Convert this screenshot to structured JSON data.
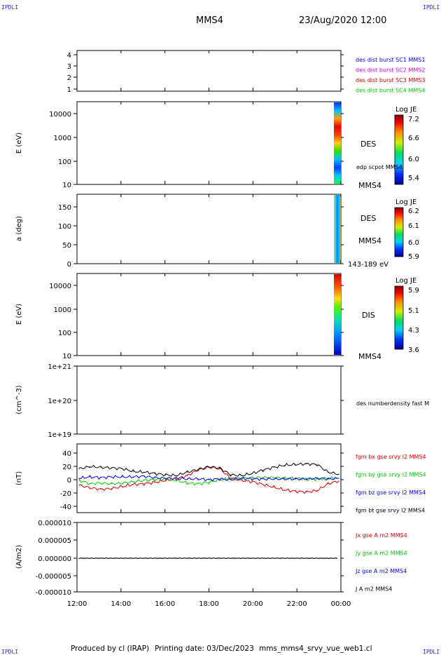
{
  "header": {
    "corner_tl": "IPDLI",
    "corner_tr": "IPDLI",
    "corner_bl": "IPDLI",
    "corner_br": "IPDLI",
    "spacecraft": "MMS4",
    "datetime": "23/Aug/2020 12:00"
  },
  "footer": {
    "produced_by": "Produced by cl (IRAP)",
    "printing_date": "Printing date: 03/Dec/2023",
    "filename": "mms_mms4_srvy_vue_web1.cl"
  },
  "x_axis": {
    "ticks": [
      "12:00",
      "14:00",
      "16:00",
      "18:00",
      "20:00",
      "22:00",
      "00:00"
    ]
  },
  "colors": {
    "blue": "#0000ee",
    "magenta": "#dd00dd",
    "red": "#dd0000",
    "green": "#00cc00",
    "black": "#000000"
  },
  "panels": {
    "p1": {
      "y_ticks": [
        "4",
        "3",
        "2",
        "1"
      ],
      "legend": [
        {
          "text": "des dist burst SC1 MMS1",
          "color": "#0000ee"
        },
        {
          "text": "des dist burst SC2 MMS2",
          "color": "#dd00dd"
        },
        {
          "text": "des dist burst SC3 MMS3",
          "color": "#dd0000"
        },
        {
          "text": "des dist burst SC4 MMS4",
          "color": "#00cc00"
        }
      ]
    },
    "p2": {
      "ylabel": "E (eV)",
      "y_ticks": [
        "10000",
        "1000",
        "100",
        "10"
      ],
      "name": "DES",
      "sub": "edp scpot MMS4",
      "tag": "MMS4",
      "cbar_title": "Log JE",
      "cbar_ticks": [
        "7.2",
        "6.6",
        "6.0",
        "5.4"
      ]
    },
    "p3": {
      "ylabel": "a (deg)",
      "y_ticks": [
        "150",
        "100",
        "50",
        "0"
      ],
      "name": "DES",
      "tag": "MMS4",
      "energy": "143-189 eV",
      "cbar_title": "Log JE",
      "cbar_ticks": [
        "6.2",
        "6.1",
        "6.0",
        "5.9"
      ]
    },
    "p4": {
      "ylabel": "E (eV)",
      "y_ticks": [
        "10000",
        "1000",
        "100",
        "10"
      ],
      "name": "DIS",
      "tag": "MMS4",
      "cbar_title": "Log JE",
      "cbar_ticks": [
        "5.9",
        "5.1",
        "4.3",
        "3.6"
      ]
    },
    "p5": {
      "ylabel": "(cm^-3)",
      "y_ticks": [
        "1e+21",
        "1e+20",
        "1e+19"
      ],
      "legend": "des numberdensity fast M"
    },
    "p6": {
      "ylabel": "(nT)",
      "y_ticks": [
        "40",
        "20",
        "0",
        "-20",
        "-40"
      ],
      "legend": [
        {
          "text": "fgm bx gse srvy l2 MMS4",
          "color": "#dd0000"
        },
        {
          "text": "fgm by gse srvy l2 MMS4",
          "color": "#00cc00"
        },
        {
          "text": "fgm bz gse srvy l2 MMS4",
          "color": "#0000ee"
        },
        {
          "text": "fgm bt gse srvy l2 MMS4",
          "color": "#000000"
        }
      ]
    },
    "p7": {
      "ylabel": "(A/m2)",
      "y_ticks": [
        "0.000010",
        "0.000005",
        "0.000000",
        "-0.000005",
        "-0.000010"
      ],
      "legend": [
        {
          "text": "Jx gse A m2 MMS4",
          "color": "#dd0000"
        },
        {
          "text": "Jy gse A m2 MMS4",
          "color": "#00cc00"
        },
        {
          "text": "Jz gse A m2 MMS4",
          "color": "#0000ee"
        },
        {
          "text": "J A m2 MMS4",
          "color": "#000000"
        }
      ]
    }
  },
  "chart_data": {
    "type": "line",
    "title": "MMS4",
    "x_range": [
      "12:00",
      "00:00"
    ],
    "x": [
      "12:00",
      "12:30",
      "13:00",
      "13:30",
      "14:00",
      "14:30",
      "15:00",
      "15:30",
      "16:00",
      "16:30",
      "17:00",
      "17:30",
      "18:00",
      "18:30",
      "19:00",
      "19:30",
      "20:00",
      "20:30",
      "21:00",
      "21:30",
      "22:00",
      "22:30",
      "23:00",
      "23:30",
      "00:00"
    ],
    "ylim": [
      -50,
      50
    ],
    "series": [
      {
        "name": "fgm bx gse srvy l2 MMS4",
        "color": "#dd0000",
        "values": [
          -10,
          -14,
          -16,
          -15,
          -12,
          -9,
          -8,
          -6,
          -3,
          -1,
          4,
          12,
          16,
          14,
          0,
          -3,
          -5,
          -9,
          -13,
          -17,
          -19,
          -20,
          -18,
          -8,
          -4
        ]
      },
      {
        "name": "fgm by gse srvy l2 MMS4",
        "color": "#00cc00",
        "values": [
          -3,
          -8,
          -7,
          -8,
          -7,
          -5,
          -3,
          -2,
          -1,
          -3,
          -7,
          -8,
          -6,
          -2,
          -1,
          0,
          1,
          1,
          1,
          0,
          0,
          -1,
          -1,
          0,
          0
        ]
      },
      {
        "name": "fgm bz gse srvy l2 MMS4",
        "color": "#0000ee",
        "values": [
          0,
          2,
          1,
          2,
          2,
          2,
          3,
          1,
          0,
          0,
          -1,
          -1,
          -2,
          -1,
          -2,
          0,
          -1,
          -1,
          -1,
          -1,
          -1,
          -1,
          0,
          -1,
          0
        ]
      },
      {
        "name": "fgm bt gse srvy l2 MMS4",
        "color": "#000000",
        "values": [
          14,
          17,
          16,
          15,
          14,
          10,
          9,
          7,
          5,
          4,
          9,
          13,
          17,
          15,
          5,
          4,
          7,
          12,
          16,
          19,
          20,
          21,
          20,
          9,
          6
        ]
      }
    ]
  }
}
